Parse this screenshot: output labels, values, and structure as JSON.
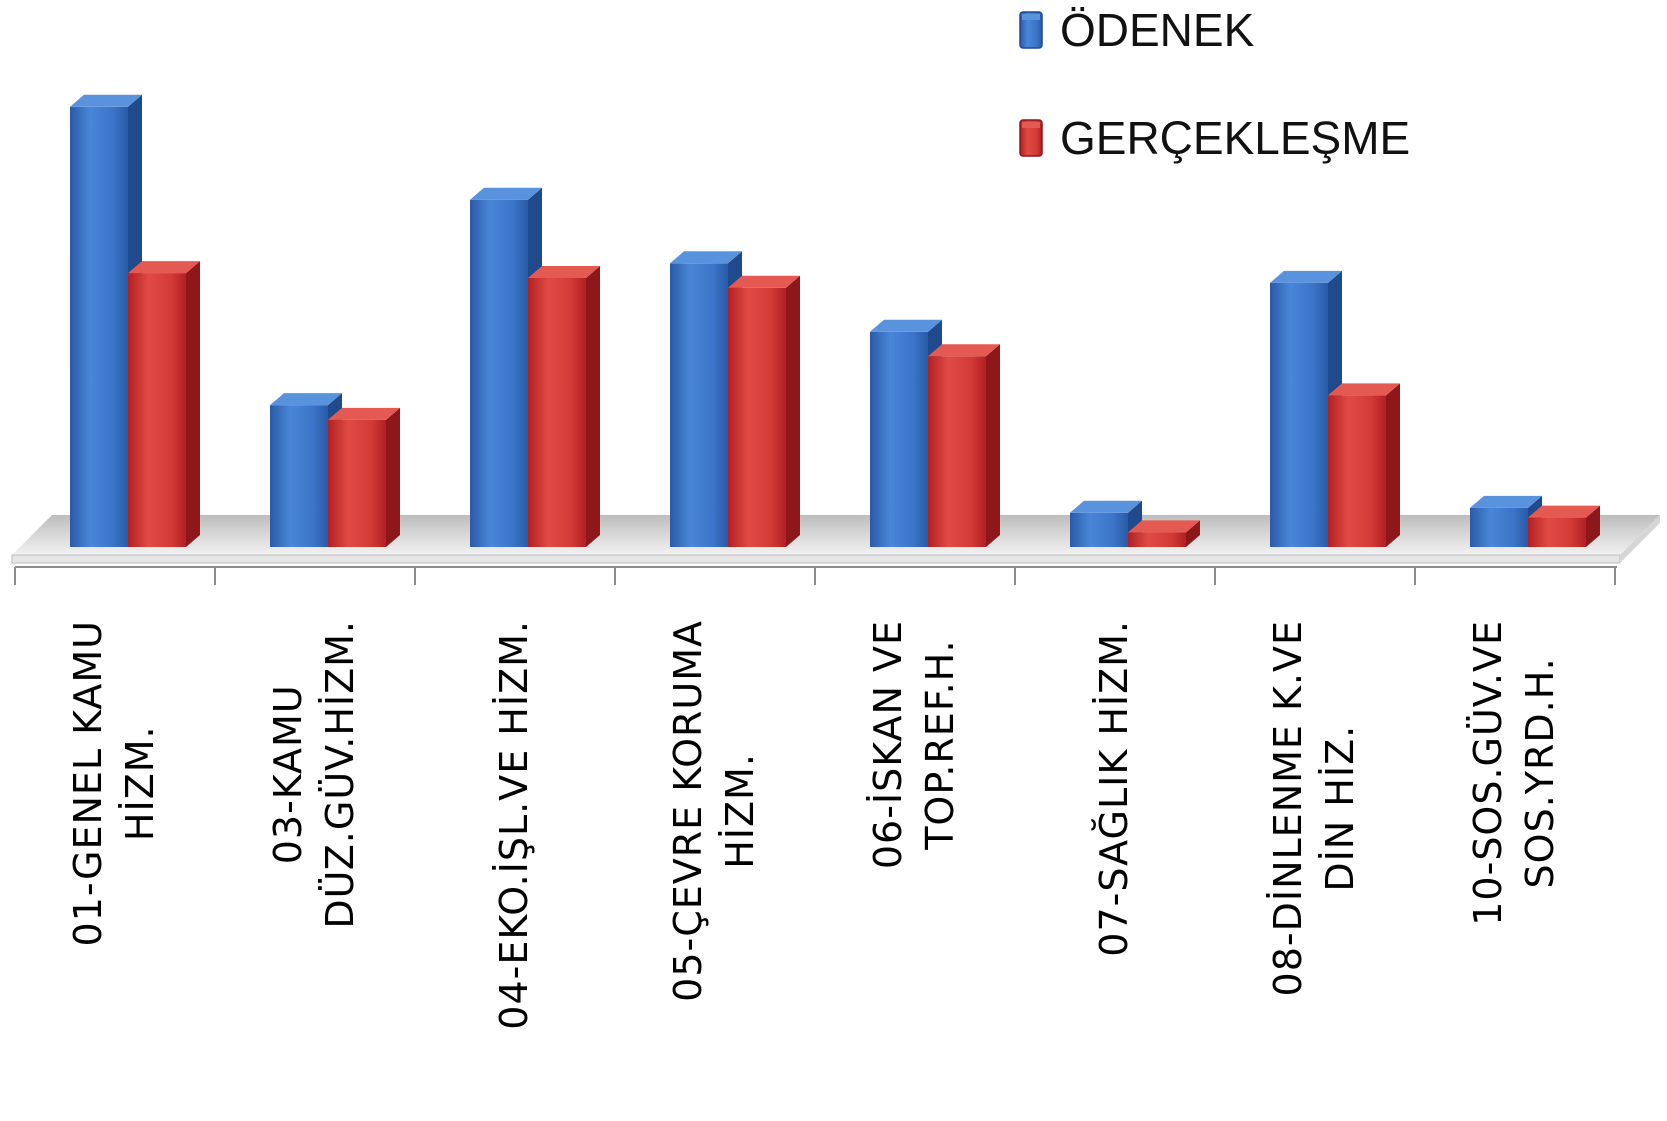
{
  "chart_data": {
    "type": "bar",
    "title": "",
    "xlabel": "",
    "ylabel": "",
    "legend_position": "top-right",
    "grid": false,
    "ylim": [
      0,
      46
    ],
    "categories": [
      [
        "01-GENEL KAMU",
        "HİZM."
      ],
      [
        "03-KAMU",
        "DÜZ.GÜV.HİZM."
      ],
      [
        "04-EKO.İŞL.VE  HİZM."
      ],
      [
        "05-ÇEVRE KORUMA",
        "HİZM."
      ],
      [
        "06-İSKAN VE",
        "TOP.REF.H."
      ],
      [
        "07-SAĞLIK HİZM."
      ],
      [
        "08-DİNLENME  K.VE",
        "DİN HİZ."
      ],
      [
        "10-SOS.GÜV.VE",
        "SOS.YRD.H."
      ]
    ],
    "series": [
      {
        "name": "ÖDENEK",
        "color": "#2e65b8",
        "values": [
          45,
          14.5,
          35.5,
          29,
          22,
          3.5,
          27,
          4
        ]
      },
      {
        "name": "GERÇEKLEŞME",
        "color": "#c0282a",
        "values": [
          28,
          13,
          27.5,
          26.5,
          19.5,
          1.5,
          15.5,
          3
        ]
      }
    ]
  }
}
